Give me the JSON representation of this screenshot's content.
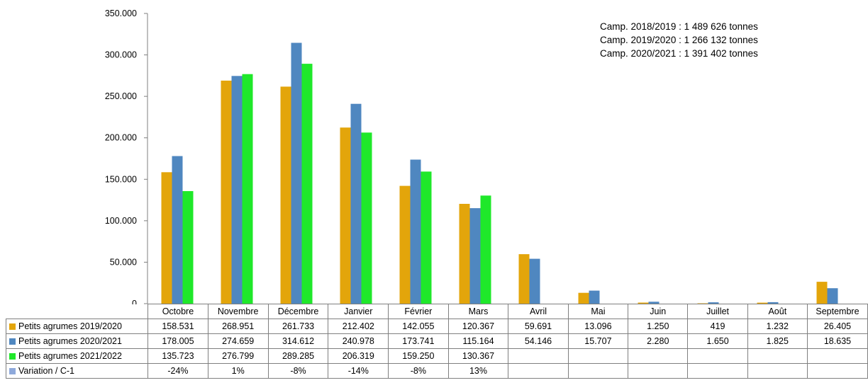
{
  "annotations": [
    "Camp. 2018/2019 : 1 489 626 tonnes",
    "Camp. 2019/2020 : 1 266 132 tonnes",
    "Camp. 2020/2021 : 1 391 402 tonnes"
  ],
  "chart_data": {
    "type": "bar",
    "categories": [
      "Octobre",
      "Novembre",
      "Décembre",
      "Janvier",
      "Février",
      "Mars",
      "Avril",
      "Mai",
      "Juin",
      "Juillet",
      "Août",
      "Septembre"
    ],
    "ylim": [
      0,
      350000
    ],
    "yticks": [
      0,
      50000,
      100000,
      150000,
      200000,
      250000,
      300000,
      350000
    ],
    "ytick_labels": [
      "0",
      "50.000",
      "100.000",
      "150.000",
      "200.000",
      "250.000",
      "300.000",
      "350.000"
    ],
    "grid": false,
    "legend": "table-rows",
    "series": [
      {
        "name": "Petits agrumes 2019/2020",
        "color": "#E3A50B",
        "values": [
          158531,
          268951,
          261733,
          212402,
          142055,
          120367,
          59691,
          13096,
          1250,
          419,
          1232,
          26405
        ],
        "labels": [
          "158.531",
          "268.951",
          "261.733",
          "212.402",
          "142.055",
          "120.367",
          "59.691",
          "13.096",
          "1.250",
          "419",
          "1.232",
          "26.405"
        ]
      },
      {
        "name": "Petits agrumes 2020/2021",
        "color": "#4F87C0",
        "values": [
          178005,
          274659,
          314612,
          240978,
          173741,
          115164,
          54146,
          15707,
          2280,
          1650,
          1825,
          18635
        ],
        "labels": [
          "178.005",
          "274.659",
          "314.612",
          "240.978",
          "173.741",
          "115.164",
          "54.146",
          "15.707",
          "2.280",
          "1.650",
          "1.825",
          "18.635"
        ]
      },
      {
        "name": "Petits agrumes 2021/2022",
        "color": "#1FE82A",
        "values": [
          135723,
          276799,
          289285,
          206319,
          159250,
          130367,
          null,
          null,
          null,
          null,
          null,
          null
        ],
        "labels": [
          "135.723",
          "276.799",
          "289.285",
          "206.319",
          "159.250",
          "130.367",
          "",
          "",
          "",
          "",
          "",
          ""
        ]
      }
    ],
    "variation": {
      "name": "Variation / C-1",
      "color": "#8EA9DB",
      "labels": [
        "-24%",
        "1%",
        "-8%",
        "-14%",
        "-8%",
        "13%",
        "",
        "",
        "",
        "",
        "",
        ""
      ]
    }
  }
}
